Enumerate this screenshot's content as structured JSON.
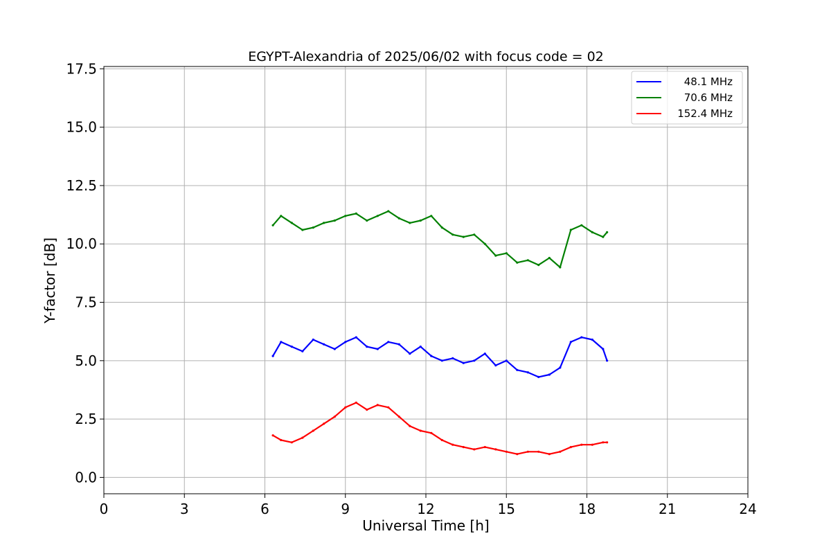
{
  "chart_data": {
    "type": "line",
    "title": "EGYPT-Alexandria of 2025/06/02 with focus code = 02",
    "xlabel": "Universal Time [h]",
    "ylabel": "Y-factor [dB]",
    "xlim": [
      0,
      24
    ],
    "ylim": [
      -0.7,
      17.6
    ],
    "xticks": [
      0,
      3,
      6,
      9,
      12,
      15,
      18,
      21,
      24
    ],
    "xtick_labels": [
      "0",
      "3",
      "6",
      "9",
      "12",
      "15",
      "18",
      "21",
      "24"
    ],
    "yticks": [
      0.0,
      2.5,
      5.0,
      7.5,
      10.0,
      12.5,
      15.0,
      17.5
    ],
    "ytick_labels": [
      "0.0",
      "2.5",
      "5.0",
      "7.5",
      "10.0",
      "12.5",
      "15.0",
      "17.5"
    ],
    "grid": true,
    "legend_position": "top-right",
    "series": [
      {
        "name": " 48.1 MHz",
        "color": "#0000ff",
        "x": [
          6.3,
          6.6,
          7.0,
          7.4,
          7.8,
          8.2,
          8.6,
          9.0,
          9.4,
          9.8,
          10.2,
          10.6,
          11.0,
          11.4,
          11.8,
          12.2,
          12.6,
          13.0,
          13.4,
          13.8,
          14.2,
          14.6,
          15.0,
          15.4,
          15.8,
          16.2,
          16.6,
          17.0,
          17.4,
          17.8,
          18.2,
          18.6,
          18.75
        ],
        "y": [
          5.2,
          5.8,
          5.6,
          5.4,
          5.9,
          5.7,
          5.5,
          5.8,
          6.0,
          5.6,
          5.5,
          5.8,
          5.7,
          5.3,
          5.6,
          5.2,
          5.0,
          5.1,
          4.9,
          5.0,
          5.3,
          4.8,
          5.0,
          4.6,
          4.5,
          4.3,
          4.4,
          4.7,
          5.8,
          6.0,
          5.9,
          5.5,
          5.0
        ]
      },
      {
        "name": " 70.6 MHz",
        "color": "#008000",
        "x": [
          6.3,
          6.6,
          7.0,
          7.4,
          7.8,
          8.2,
          8.6,
          9.0,
          9.4,
          9.8,
          10.2,
          10.6,
          11.0,
          11.4,
          11.8,
          12.2,
          12.6,
          13.0,
          13.4,
          13.8,
          14.2,
          14.6,
          15.0,
          15.4,
          15.8,
          16.2,
          16.6,
          17.0,
          17.4,
          17.8,
          18.2,
          18.6,
          18.75
        ],
        "y": [
          10.8,
          11.2,
          10.9,
          10.6,
          10.7,
          10.9,
          11.0,
          11.2,
          11.3,
          11.0,
          11.2,
          11.4,
          11.1,
          10.9,
          11.0,
          11.2,
          10.7,
          10.4,
          10.3,
          10.4,
          10.0,
          9.5,
          9.6,
          9.2,
          9.3,
          9.1,
          9.4,
          9.0,
          10.6,
          10.8,
          10.5,
          10.3,
          10.5
        ]
      },
      {
        "name": "152.4 MHz",
        "color": "#ff0000",
        "x": [
          6.3,
          6.6,
          7.0,
          7.4,
          7.8,
          8.2,
          8.6,
          9.0,
          9.4,
          9.8,
          10.2,
          10.6,
          11.0,
          11.4,
          11.8,
          12.2,
          12.6,
          13.0,
          13.4,
          13.8,
          14.2,
          14.6,
          15.0,
          15.4,
          15.8,
          16.2,
          16.6,
          17.0,
          17.4,
          17.8,
          18.2,
          18.6,
          18.75
        ],
        "y": [
          1.8,
          1.6,
          1.5,
          1.7,
          2.0,
          2.3,
          2.6,
          3.0,
          3.2,
          2.9,
          3.1,
          3.0,
          2.6,
          2.2,
          2.0,
          1.9,
          1.6,
          1.4,
          1.3,
          1.2,
          1.3,
          1.2,
          1.1,
          1.0,
          1.1,
          1.1,
          1.0,
          1.1,
          1.3,
          1.4,
          1.4,
          1.5,
          1.5
        ]
      }
    ]
  }
}
